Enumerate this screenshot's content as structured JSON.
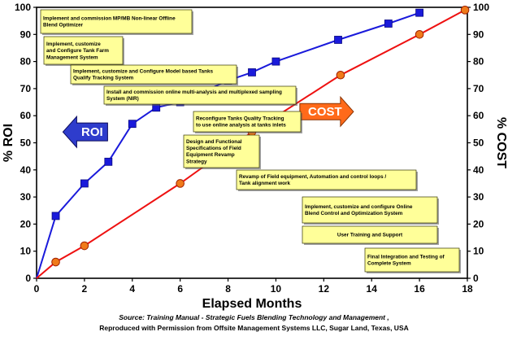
{
  "chart_data": {
    "type": "line",
    "xlabel": "Elapsed Months",
    "ylabel_left": "% ROI",
    "ylabel_right": "% COST",
    "xlim": [
      0,
      18
    ],
    "ylim": [
      0,
      100
    ],
    "x_ticks": [
      "0",
      "2",
      "4",
      "6",
      "8",
      "10",
      "12",
      "14",
      "16",
      "18"
    ],
    "y_ticks": [
      "0",
      "10",
      "20",
      "30",
      "40",
      "50",
      "60",
      "70",
      "80",
      "90",
      "100"
    ],
    "series": [
      {
        "name": "ROI",
        "color": "#1a1adb",
        "marker": "square",
        "points": [
          [
            0,
            0
          ],
          [
            0.8,
            23
          ],
          [
            2,
            35
          ],
          [
            3,
            43
          ],
          [
            4,
            57
          ],
          [
            5,
            63
          ],
          [
            6,
            65
          ],
          [
            8,
            73
          ],
          [
            9,
            76
          ],
          [
            10,
            80
          ],
          [
            12.6,
            88
          ],
          [
            14.7,
            94
          ],
          [
            16,
            98
          ]
        ]
      },
      {
        "name": "COST",
        "color": "#ee1111",
        "marker": "circle",
        "points": [
          [
            0,
            0
          ],
          [
            0.8,
            6
          ],
          [
            2,
            12
          ],
          [
            6,
            35
          ],
          [
            9,
            54
          ],
          [
            12.7,
            75
          ],
          [
            16,
            90
          ],
          [
            17.9,
            99
          ]
        ]
      }
    ],
    "annotations": [
      {
        "lines": [
          "Implement and commission MP/MB Non-linear Offline",
          "Blend Optimizer"
        ]
      },
      {
        "lines": [
          "Implement, customize",
          "and Configure Tank Farm",
          "Management System"
        ]
      },
      {
        "lines": [
          "Implement, customize and Configure Model based Tanks",
          "Qualify Tracking System"
        ]
      },
      {
        "lines": [
          "Install and commission online multi-analysis and multiplexed sampling",
          "System (NIR)"
        ]
      },
      {
        "lines": [
          "Reconfigure Tanks Quality Tracking",
          "to use online analysis at tanks inlets"
        ]
      },
      {
        "lines": [
          "Design and Functional",
          "Specifications of Field",
          "Equipment Revamp",
          "Strategy"
        ]
      },
      {
        "lines": [
          "Revamp of Field equipment, Automation and control loops /",
          "Tank alignment work"
        ]
      },
      {
        "lines": [
          "Implement, customize and configure Online",
          "Blend Control and Optimization System"
        ]
      },
      {
        "lines": [
          "User Training and Support"
        ]
      },
      {
        "lines": [
          "Final Integration and Testing of",
          "Complete System"
        ]
      }
    ],
    "arrow_labels": {
      "roi": "ROI",
      "cost": "COST"
    },
    "colors": {
      "annotation_fill": "#ffff99",
      "roi_arrow": "#2e3ccc",
      "cost_arrow": "#ff6a1a",
      "cost_marker": "#f07a1a"
    }
  },
  "source": {
    "line1": "Source: Training Manual - Strategic Fuels Blending Technology and Management ,",
    "line2": "Reproduced with Permission from Offsite Management Systems LLC, Sugar Land, Texas, USA"
  }
}
